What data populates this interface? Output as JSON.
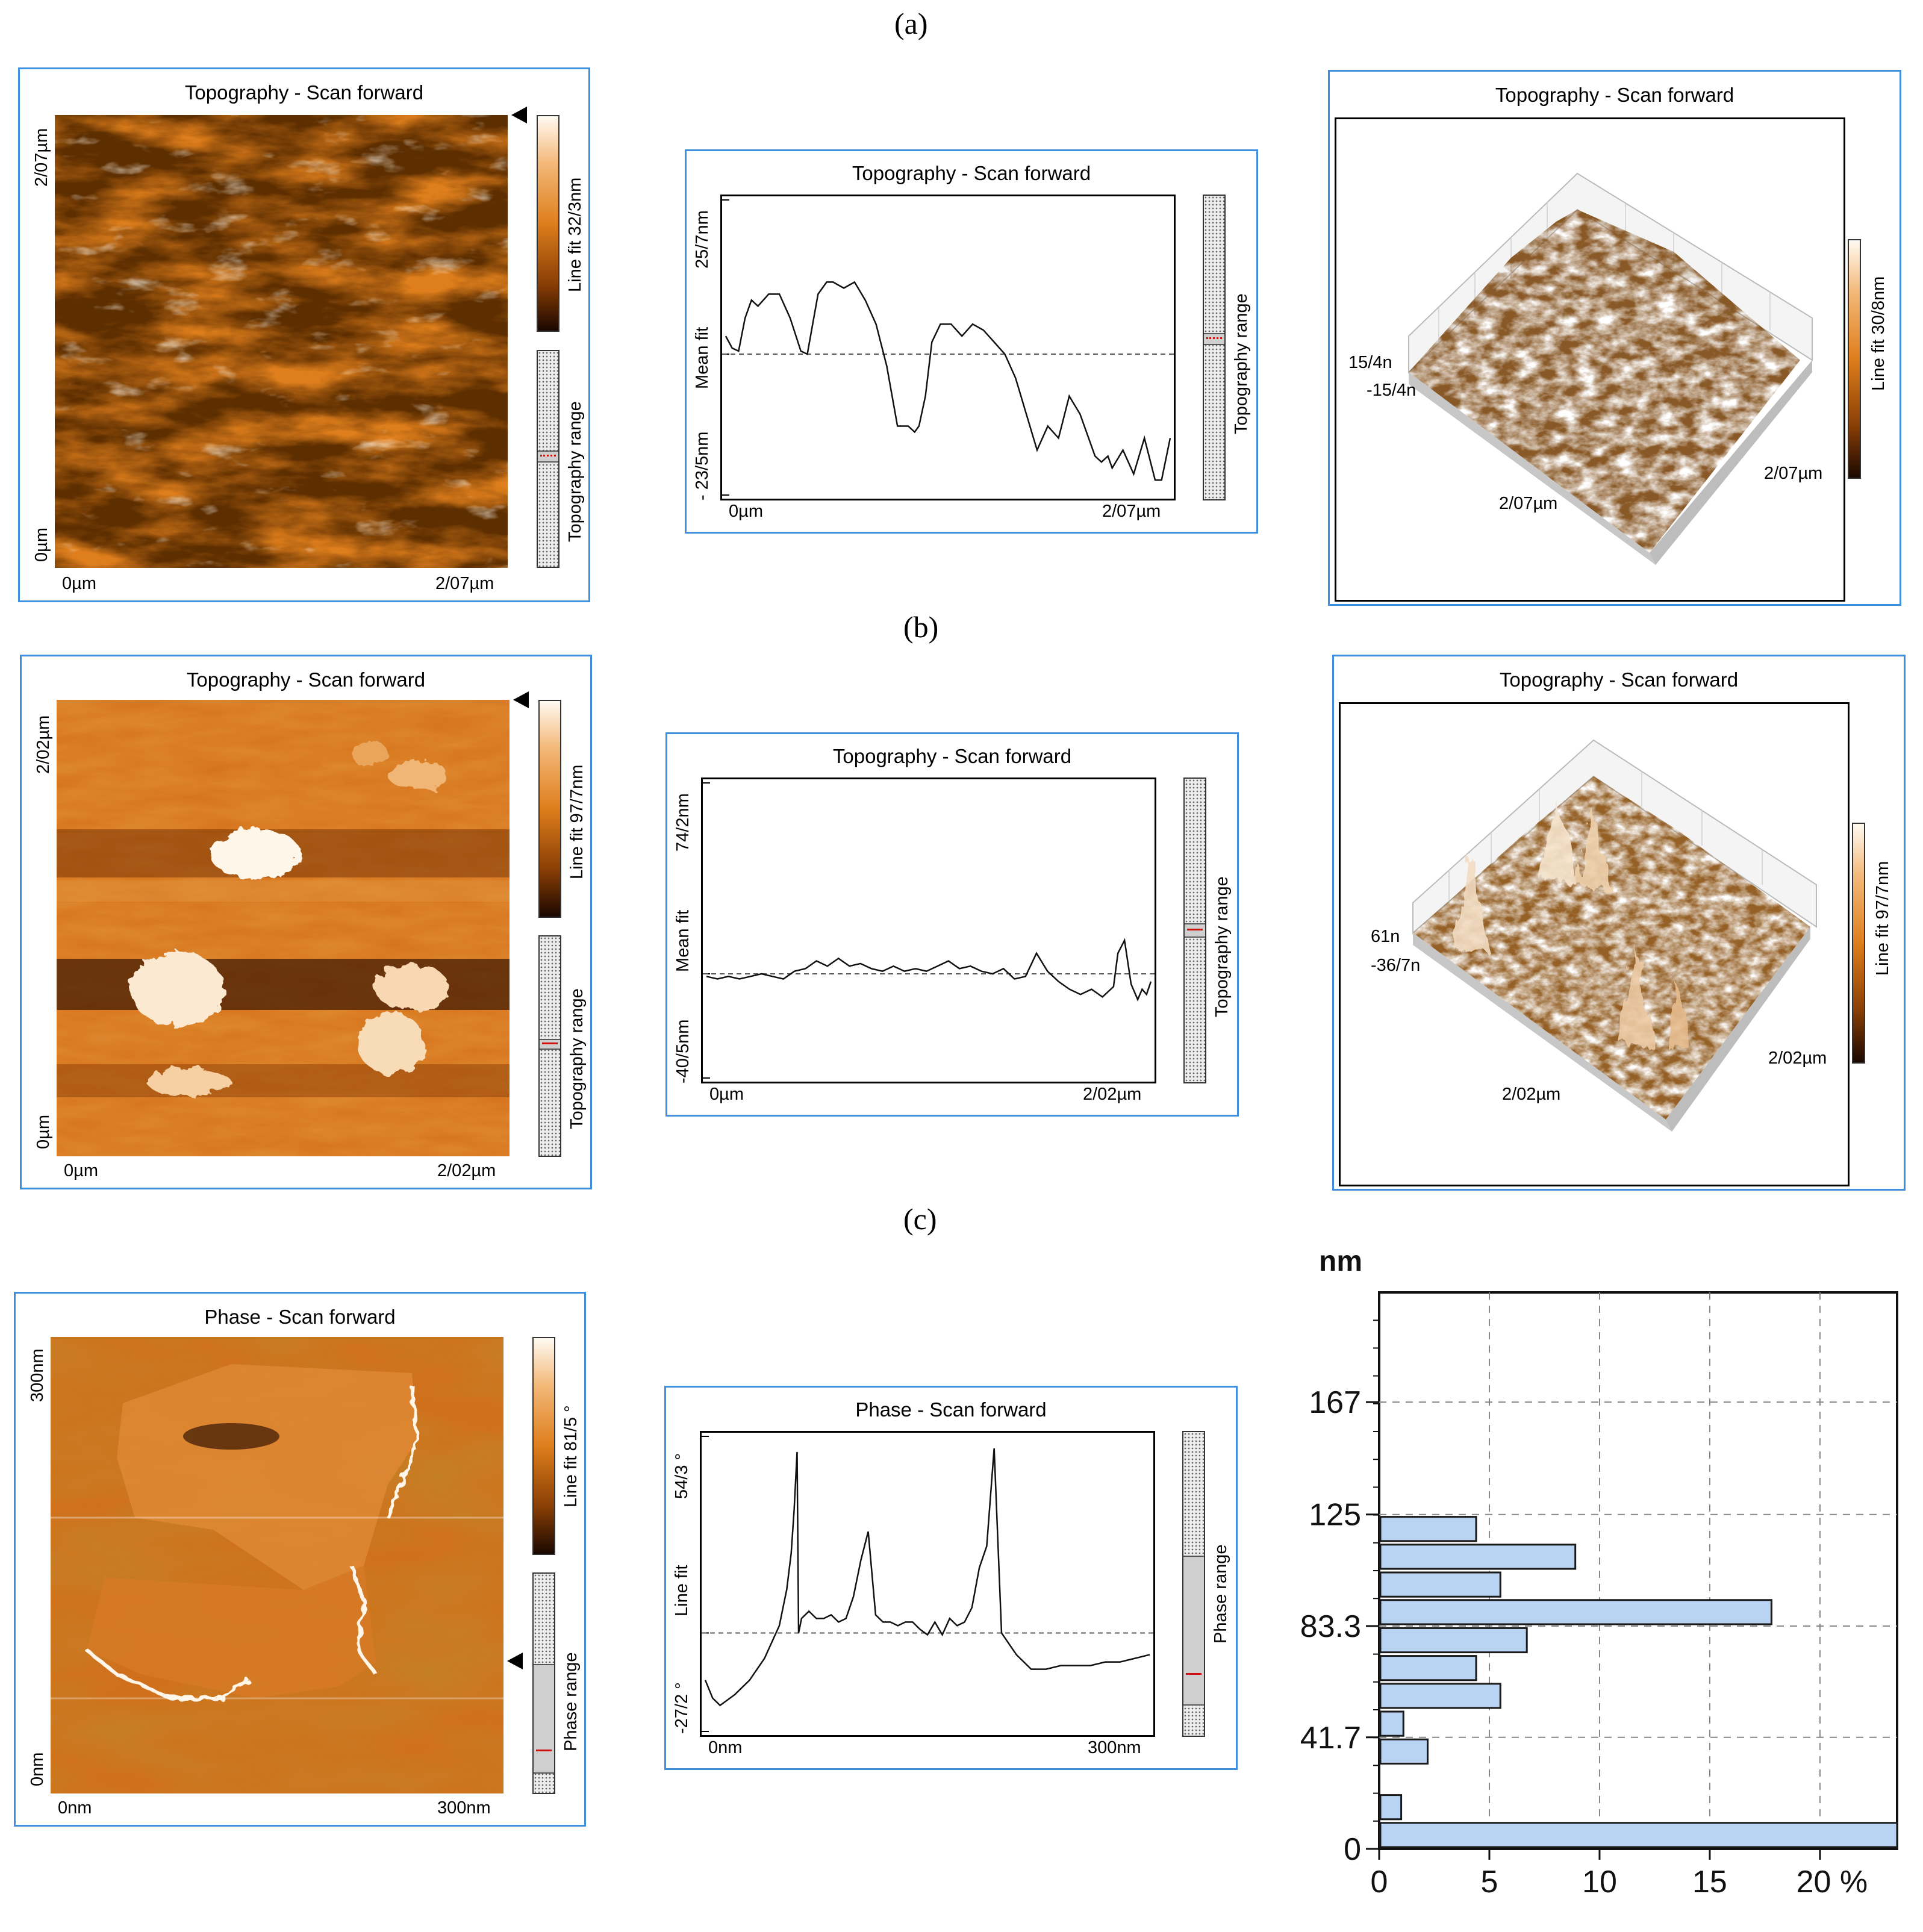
{
  "row_labels": [
    "(a)",
    "(b)",
    "(c)"
  ],
  "row_a": {
    "map": {
      "title": "Topography - Scan forward",
      "y_top": "2/07µm",
      "y_bottom": "0µm",
      "x_left": "0µm",
      "x_right": "2/07µm",
      "colorbar_label": "Line fit 32/3nm",
      "range_label": "Topography range"
    },
    "profile": {
      "title": "Topography - Scan forward",
      "y_top": "25/7nm",
      "y_mid": "Mean fit",
      "y_bottom": "- 23/5nm",
      "x_left": "0µm",
      "x_right": "2/07µm",
      "range_label": "Topography range"
    },
    "view3d": {
      "title": "Topography - Scan forward",
      "z_top": "15/4n",
      "z_bottom": "-15/4n",
      "x_label": "2/07µm",
      "y_label": "2/07µm",
      "colorbar_label": "Line fit 30/8nm"
    }
  },
  "row_b": {
    "map": {
      "title": "Topography - Scan forward",
      "y_top": "2/02µm",
      "y_bottom": "0µm",
      "x_left": "0µm",
      "x_right": "2/02µm",
      "colorbar_label": "Line fit 97/7nm",
      "range_label": "Topography range"
    },
    "profile": {
      "title": "Topography - Scan forward",
      "y_top": "74/2nm",
      "y_mid": "Mean fit",
      "y_bottom": "-40/5nm",
      "x_left": "0µm",
      "x_right": "2/02µm",
      "range_label": "Topography range"
    },
    "view3d": {
      "title": "Topography - Scan forward",
      "z_top": "61n",
      "z_bottom": "-36/7n",
      "x_label": "2/02µm",
      "y_label": "2/02µm",
      "colorbar_label": "Line fit 97/7nm"
    }
  },
  "row_c": {
    "map": {
      "title": "Phase - Scan forward",
      "y_top": "300nm",
      "y_bottom": "0nm",
      "x_left": "0nm",
      "x_right": "300nm",
      "colorbar_label": "Line fit 81/5 °",
      "range_label": "Phase range"
    },
    "profile": {
      "title": "Phase - Scan forward",
      "y_top": "54/3 °",
      "y_mid": "Line fit",
      "y_bottom": "-27/2 °",
      "x_left": "0nm",
      "x_right": "300nm",
      "range_label": "Phase range"
    }
  },
  "colors": {
    "panel_border": "#3f8fdc",
    "bar_fill": "#b9d3f2",
    "bar_stroke": "#1a1a1a",
    "copper_light": "#fff4e4",
    "copper_mid": "#de7e1c",
    "copper_dark": "#1b0800"
  },
  "chart_data": [
    {
      "type": "line",
      "name": "profile-a",
      "title": "Topography - Scan forward",
      "xlabel": "",
      "ylabel": "Mean fit",
      "xlim": [
        0,
        2.07
      ],
      "ylim": [
        -23.5,
        25.7
      ],
      "mean_line": 0,
      "x": [
        0,
        0.03,
        0.06,
        0.09,
        0.12,
        0.15,
        0.2,
        0.25,
        0.3,
        0.35,
        0.38,
        0.4,
        0.43,
        0.47,
        0.5,
        0.55,
        0.6,
        0.65,
        0.7,
        0.75,
        0.8,
        0.85,
        0.88,
        0.9,
        0.93,
        0.96,
        1.0,
        1.05,
        1.1,
        1.15,
        1.2,
        1.25,
        1.3,
        1.35,
        1.4,
        1.45,
        1.5,
        1.55,
        1.6,
        1.65,
        1.7,
        1.72,
        1.75,
        1.78,
        1.8,
        1.85,
        1.9,
        1.95,
        2.0,
        2.03,
        2.07
      ],
      "y": [
        3,
        1,
        0.5,
        6,
        9,
        8,
        10,
        10,
        6,
        0.5,
        0,
        4,
        10,
        12,
        12,
        11,
        12,
        9,
        5,
        -2,
        -12,
        -12,
        -13,
        -12,
        -7,
        2,
        5,
        5,
        3,
        5,
        4,
        2,
        0,
        -4,
        -10,
        -16,
        -12,
        -14,
        -7,
        -10,
        -15,
        -17,
        -18,
        -17,
        -19,
        -16,
        -20,
        -14,
        -21,
        -21,
        -14
      ]
    },
    {
      "type": "line",
      "name": "profile-b",
      "title": "Topography - Scan forward",
      "xlabel": "",
      "ylabel": "Mean fit",
      "xlim": [
        0,
        2.02
      ],
      "ylim": [
        -40.5,
        74.2
      ],
      "mean_line": 0,
      "x": [
        0,
        0.05,
        0.1,
        0.15,
        0.2,
        0.25,
        0.3,
        0.35,
        0.4,
        0.45,
        0.5,
        0.55,
        0.6,
        0.65,
        0.7,
        0.75,
        0.8,
        0.85,
        0.9,
        0.95,
        1.0,
        1.05,
        1.1,
        1.15,
        1.2,
        1.25,
        1.3,
        1.35,
        1.4,
        1.45,
        1.5,
        1.55,
        1.6,
        1.65,
        1.7,
        1.75,
        1.8,
        1.85,
        1.87,
        1.9,
        1.93,
        1.96,
        1.98,
        2.0,
        2.02
      ],
      "y": [
        -1,
        -2,
        -1,
        -2,
        -1,
        0,
        -1,
        -2,
        1,
        2,
        5,
        3,
        6,
        3,
        4,
        2,
        1,
        3,
        1,
        2,
        1,
        3,
        5,
        2,
        3,
        1,
        0,
        2,
        -2,
        -1,
        8,
        1,
        -3,
        -6,
        -8,
        -6,
        -9,
        -5,
        8,
        13,
        -4,
        -10,
        -6,
        -8,
        -3
      ]
    },
    {
      "type": "line",
      "name": "profile-c",
      "title": "Phase - Scan forward",
      "xlabel": "",
      "ylabel": "Line fit",
      "xlim": [
        0,
        300
      ],
      "ylim": [
        -27.2,
        54.3
      ],
      "mean_line": 0,
      "x": [
        0,
        5,
        10,
        20,
        30,
        40,
        50,
        55,
        58,
        60,
        62,
        63,
        65,
        70,
        75,
        80,
        85,
        90,
        95,
        100,
        105,
        110,
        115,
        120,
        125,
        130,
        135,
        140,
        145,
        150,
        155,
        160,
        165,
        170,
        175,
        180,
        185,
        190,
        195,
        200,
        210,
        220,
        230,
        240,
        250,
        260,
        270,
        280,
        290,
        300
      ],
      "y": [
        -13,
        -18,
        -20,
        -17,
        -13,
        -7,
        2,
        12,
        22,
        34,
        50,
        0,
        4,
        6,
        4,
        4,
        5,
        3,
        4,
        10,
        20,
        28,
        5,
        3,
        3,
        2,
        3,
        3,
        1,
        -0.5,
        3,
        -0.5,
        4,
        2,
        3,
        7,
        18,
        24,
        51,
        0,
        -6,
        -10,
        -10,
        -9,
        -9,
        -9,
        -8,
        -8,
        -7,
        -6
      ]
    },
    {
      "type": "bar",
      "orientation": "horizontal",
      "name": "height-histogram",
      "title": "",
      "ylabel": "nm",
      "xlabel": "%",
      "categories": [
        "0",
        "10.4",
        "20.8",
        "31.2",
        "41.6",
        "52",
        "62.4",
        "72.8",
        "83.3",
        "93.6",
        "104",
        "114.4"
      ],
      "values": [
        23.5,
        1,
        0,
        2.2,
        1.1,
        5.5,
        4.4,
        6.7,
        17.8,
        5.5,
        8.9,
        4.4
      ],
      "xlim": [
        0,
        23.5
      ],
      "ylim": [
        0,
        208
      ],
      "x_ticks": [
        "0",
        "5",
        "10",
        "15",
        "20 %"
      ],
      "y_ticks": [
        "0",
        "41.7",
        "83.3",
        "125",
        "167"
      ],
      "unit_label": "nm"
    }
  ]
}
